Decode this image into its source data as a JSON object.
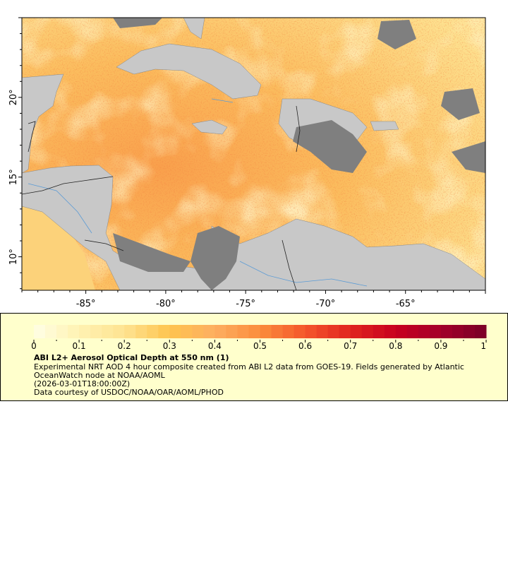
{
  "map": {
    "lon_range": [
      -89,
      -60
    ],
    "lat_range": [
      7.9,
      25
    ],
    "x_ticks": [
      "-85°",
      "-80°",
      "-75°",
      "-70°",
      "-65°"
    ],
    "x_tick_values": [
      -85,
      -80,
      -75,
      -70,
      -65
    ],
    "y_ticks": [
      "20°",
      "15°",
      "10°"
    ],
    "y_tick_values": [
      20,
      15,
      10
    ],
    "colors": {
      "land": "#c8c8c8",
      "no_data": "#7f7f7f",
      "rivers": "#5b9bd5",
      "borders": "#777777"
    }
  },
  "legend": {
    "colorbar_ticks": [
      "0",
      "0.1",
      "0.2",
      "0.3",
      "0.4",
      "0.5",
      "0.6",
      "0.7",
      "0.8",
      "0.9",
      "1"
    ],
    "colorbar_range": [
      0,
      1
    ],
    "colormap": [
      "#ffffe5",
      "#fff2b2",
      "#fee391",
      "#fec44f",
      "#fdae61",
      "#fb8d3c",
      "#f4562b",
      "#e0241f",
      "#c8001f",
      "#a3002a",
      "#7a0027"
    ],
    "title": "ABI L2+ Aerosol Optical Depth at 550 nm (1)",
    "summary_line1": "Experimental NRT AOD 4 hour composite created from ABI L2 data from GOES-19. Fields generated by Atlantic",
    "summary_line2": "OceanWatch node at NOAA/AOML",
    "time": "(2026-03-01T18:00:00Z)",
    "credit": "Data courtesy of USDOC/NOAA/OAR/AOML/PHOD"
  }
}
